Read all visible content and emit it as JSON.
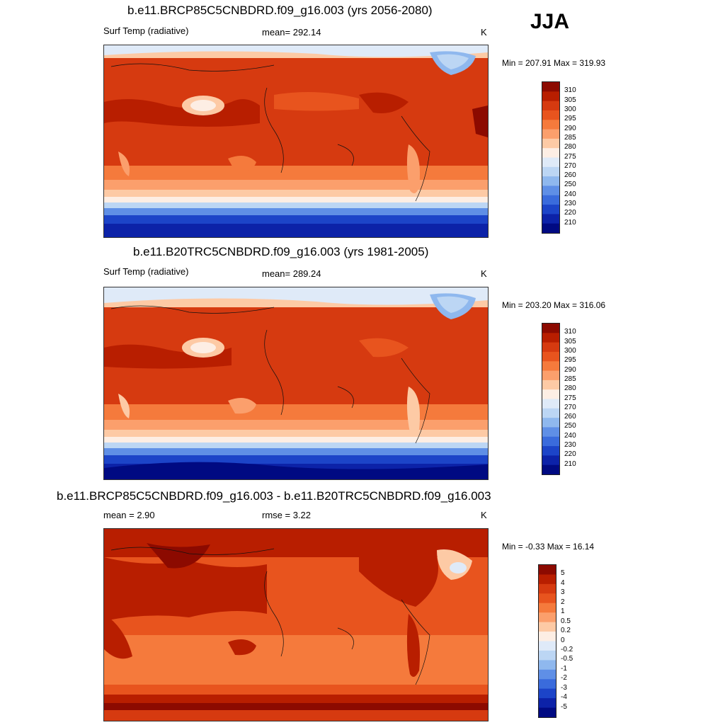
{
  "season": "JJA",
  "panels": [
    {
      "id": "future",
      "title": "b.e11.BRCP85C5CNBDRD.f09_g16.003 (yrs 2056-2080)",
      "left_label": "Surf Temp (radiative)",
      "center_label": "mean= 292.14",
      "units": "K",
      "minmax": "Min = 207.91 Max = 319.93"
    },
    {
      "id": "historical",
      "title": "b.e11.B20TRC5CNBDRD.f09_g16.003 (yrs 1981-2005)",
      "left_label": "Surf Temp (radiative)",
      "center_label": "mean= 289.24",
      "units": "K",
      "minmax": "Min = 203.20 Max = 316.06"
    },
    {
      "id": "difference",
      "title": "b.e11.BRCP85C5CNBDRD.f09_g16.003 - b.e11.B20TRC5CNBDRD.f09_g16.003",
      "left_label": "mean =   2.90",
      "center_label": "rmse =   3.22",
      "units": "K",
      "minmax": "Min =  -0.33 Max =  16.14"
    }
  ],
  "colorbars": {
    "temperature": {
      "labels": [
        "310",
        "305",
        "300",
        "295",
        "290",
        "285",
        "280",
        "275",
        "270",
        "260",
        "250",
        "240",
        "230",
        "220",
        "210"
      ],
      "colors": [
        "#8c0a00",
        "#b81e00",
        "#d63a10",
        "#e8541e",
        "#f57a3c",
        "#fb9f6c",
        "#fdcaa5",
        "#fdeee4",
        "#dfeaf8",
        "#bcd6f4",
        "#8fb8ee",
        "#5f8fe6",
        "#3a6bdc",
        "#1c44c8",
        "#0c22a8",
        "#000a82"
      ]
    },
    "difference": {
      "labels": [
        "5",
        "4",
        "3",
        "2",
        "1",
        "0.5",
        "0.2",
        "0",
        "-0.2",
        "-0.5",
        "-1",
        "-2",
        "-3",
        "-4",
        "-5"
      ],
      "colors": [
        "#8c0a00",
        "#b81e00",
        "#d63a10",
        "#e8541e",
        "#f57a3c",
        "#fb9f6c",
        "#fdcaa5",
        "#fdeee4",
        "#dfeaf8",
        "#bcd6f4",
        "#8fb8ee",
        "#5f8fe6",
        "#3a6bdc",
        "#1c44c8",
        "#0c22a8",
        "#000a82"
      ]
    }
  }
}
